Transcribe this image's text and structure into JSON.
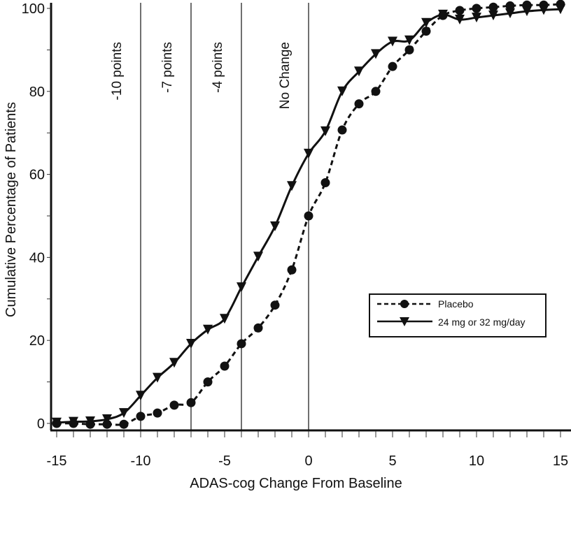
{
  "chart_data": {
    "type": "line",
    "title": "",
    "xlabel": "ADAS-cog Change From Baseline",
    "ylabel": "Cumulative Percentage of Patients",
    "xlim": [
      -15,
      15
    ],
    "ylim": [
      0,
      100
    ],
    "grid": false,
    "x_ticks": [
      -15,
      -10,
      -5,
      0,
      5,
      10,
      15
    ],
    "x_tick_labels": [
      "-15",
      "-10",
      "-5",
      "0",
      "5",
      "10",
      "15"
    ],
    "y_ticks": [
      0,
      20,
      40,
      60,
      80,
      100
    ],
    "y_tick_labels": [
      "0",
      "20",
      "40",
      "60",
      "80",
      "100"
    ],
    "reference_lines": [
      {
        "x": -10,
        "label": "-10 points"
      },
      {
        "x": -7,
        "label": "-7 points"
      },
      {
        "x": -4,
        "label": "-4 points"
      },
      {
        "x": 0,
        "label": "No Change"
      }
    ],
    "legend_position": "center-right",
    "x": [
      -15,
      -14,
      -13,
      -12,
      -11,
      -10,
      -9,
      -8,
      -7,
      -6,
      -5,
      -4,
      -3,
      -2,
      -1,
      0,
      1,
      2,
      3,
      4,
      5,
      6,
      7,
      8,
      9,
      10,
      11,
      12,
      13,
      14,
      15
    ],
    "series": [
      {
        "name": "Placebo",
        "marker": "circle",
        "line": "dashed",
        "values": [
          0,
          0,
          -0.2,
          -0.2,
          -0.2,
          1.7,
          2.5,
          4.4,
          5,
          10,
          13.8,
          19.2,
          23,
          28.5,
          37,
          50,
          58,
          70.7,
          77,
          80,
          86,
          90,
          94.5,
          98.3,
          99.5,
          100,
          100.3,
          100.6,
          100.8,
          100.8,
          101
        ]
      },
      {
        "name": "24 mg or 32 mg/day",
        "marker": "triangle-down",
        "line": "solid",
        "values": [
          0.2,
          0.4,
          0.5,
          1,
          2.5,
          6.7,
          11,
          14.6,
          19.2,
          22.6,
          25.2,
          32.8,
          40.2,
          47.5,
          57.2,
          65,
          70.4,
          80,
          84.8,
          89,
          92,
          92.3,
          96.5,
          98.5,
          97.3,
          97.8,
          98.3,
          98.8,
          99.3,
          99.6,
          99.8
        ]
      }
    ]
  }
}
